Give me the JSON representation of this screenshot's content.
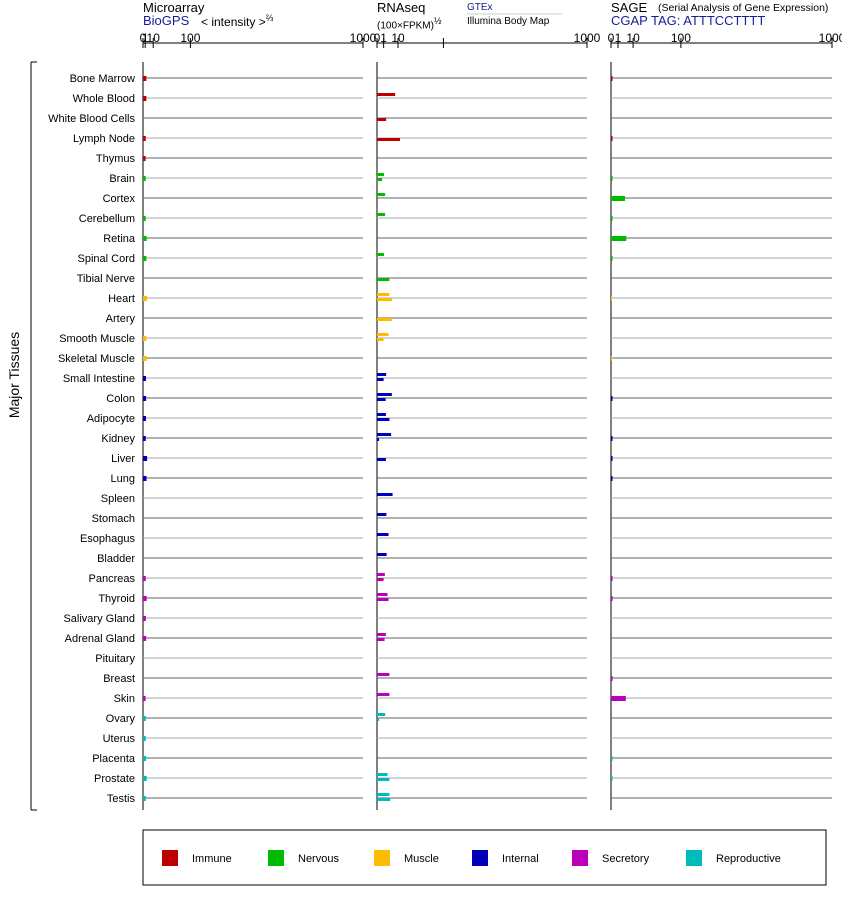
{
  "headers": {
    "microarray": "Microarray",
    "biogps": "BioGPS",
    "intensity": "< intensity >",
    "intensity_exp": "⅔",
    "rnaseq": "RNAseq",
    "fpkm": "(100×FPKM)",
    "fpkm_exp": "½",
    "gtex": "GTEx",
    "illumina": "Illumina Body Map",
    "sage": "SAGE",
    "sage_full": "(Serial Analysis of Gene Expression)",
    "cgap": "CGAP TAG: ATTTCCTTTT"
  },
  "y_group_label": "Major Tissues",
  "colors": {
    "Immune": "#bb0000",
    "Nervous": "#00bb00",
    "Muscle": "#ffbb00",
    "Internal": "#0000bb",
    "Secretory": "#bb00bb",
    "Reproductive": "#00bbbb"
  },
  "legend": [
    "Immune",
    "Nervous",
    "Muscle",
    "Internal",
    "Secretory",
    "Reproductive"
  ],
  "chart_data": [
    {
      "type": "bar",
      "title": "Microarray",
      "scale": "cube-root-like (intensity^2/3)",
      "tick_labels": [
        "0",
        "1",
        "10",
        "100",
        "1000"
      ],
      "xlim": [
        0,
        1000
      ],
      "series": [
        {
          "values": [
            1.9,
            1.9,
            null,
            1.4,
            1.3,
            1.4,
            null,
            1.4,
            2.1,
            1.9,
            null,
            2.5,
            null,
            1.9,
            2.2,
            1.6,
            1.7,
            1.6,
            1.4,
            2.5,
            2.0,
            null,
            null,
            null,
            null,
            1.4,
            2.1,
            1.5,
            1.7,
            null,
            null,
            1.3,
            1.4,
            1.4,
            1.7,
            2.2,
            1.4
          ]
        }
      ]
    },
    {
      "type": "bar",
      "title": "RNAseq",
      "scale": "square-root (100×FPKM)^1/2",
      "tick_labels": [
        "0",
        "1",
        "10",
        "1000"
      ],
      "xlim": [
        0,
        1000
      ],
      "series": [
        {
          "name": "GTEx",
          "values": [
            null,
            7.5,
            null,
            null,
            null,
            1.1,
            1.5,
            1.5,
            null,
            1.1,
            null,
            3.5,
            null,
            3.0,
            null,
            1.9,
            5.0,
            1.8,
            4.5,
            null,
            null,
            5.5,
            2.0,
            3.0,
            2.1,
            1.4,
            2.5,
            null,
            1.8,
            null,
            3.5,
            3.5,
            1.5,
            null,
            null,
            2.5,
            3.5
          ]
        },
        {
          "name": "Illumina Body Map",
          "values": [
            null,
            null,
            1.9,
            12.0,
            null,
            0.6,
            null,
            null,
            null,
            null,
            3.5,
            5.0,
            5.0,
            1.0,
            null,
            1.0,
            1.7,
            3.5,
            0.1,
            1.8,
            null,
            null,
            null,
            null,
            null,
            1.0,
            3.0,
            null,
            1.3,
            null,
            null,
            null,
            0.1,
            null,
            null,
            3.5,
            4.0
          ]
        }
      ]
    },
    {
      "type": "bar",
      "title": "SAGE",
      "tick_labels": [
        "0",
        "1",
        "10",
        "100",
        "1000"
      ],
      "xlim": [
        0,
        1000
      ],
      "series": [
        {
          "values": [
            0.05,
            null,
            null,
            0.05,
            null,
            0.05,
            4.0,
            0.05,
            4.8,
            0.05,
            null,
            0.02,
            null,
            null,
            0.02,
            null,
            0.05,
            null,
            0.05,
            0.05,
            0.05,
            null,
            null,
            null,
            null,
            0.05,
            0.05,
            null,
            null,
            null,
            0.05,
            4.5,
            null,
            null,
            0.05,
            0.05,
            null
          ]
        }
      ]
    }
  ],
  "tissues": [
    {
      "name": "Bone Marrow",
      "system": "Immune"
    },
    {
      "name": "Whole Blood",
      "system": "Immune"
    },
    {
      "name": "White Blood Cells",
      "system": "Immune"
    },
    {
      "name": "Lymph Node",
      "system": "Immune"
    },
    {
      "name": "Thymus",
      "system": "Immune"
    },
    {
      "name": "Brain",
      "system": "Nervous"
    },
    {
      "name": "Cortex",
      "system": "Nervous"
    },
    {
      "name": "Cerebellum",
      "system": "Nervous"
    },
    {
      "name": "Retina",
      "system": "Nervous"
    },
    {
      "name": "Spinal Cord",
      "system": "Nervous"
    },
    {
      "name": "Tibial Nerve",
      "system": "Nervous"
    },
    {
      "name": "Heart",
      "system": "Muscle"
    },
    {
      "name": "Artery",
      "system": "Muscle"
    },
    {
      "name": "Smooth Muscle",
      "system": "Muscle"
    },
    {
      "name": "Skeletal Muscle",
      "system": "Muscle"
    },
    {
      "name": "Small Intestine",
      "system": "Internal"
    },
    {
      "name": "Colon",
      "system": "Internal"
    },
    {
      "name": "Adipocyte",
      "system": "Internal"
    },
    {
      "name": "Kidney",
      "system": "Internal"
    },
    {
      "name": "Liver",
      "system": "Internal"
    },
    {
      "name": "Lung",
      "system": "Internal"
    },
    {
      "name": "Spleen",
      "system": "Internal"
    },
    {
      "name": "Stomach",
      "system": "Internal"
    },
    {
      "name": "Esophagus",
      "system": "Internal"
    },
    {
      "name": "Bladder",
      "system": "Internal"
    },
    {
      "name": "Pancreas",
      "system": "Secretory"
    },
    {
      "name": "Thyroid",
      "system": "Secretory"
    },
    {
      "name": "Salivary Gland",
      "system": "Secretory"
    },
    {
      "name": "Adrenal Gland",
      "system": "Secretory"
    },
    {
      "name": "Pituitary",
      "system": "Secretory"
    },
    {
      "name": "Breast",
      "system": "Secretory"
    },
    {
      "name": "Skin",
      "system": "Secretory"
    },
    {
      "name": "Ovary",
      "system": "Reproductive"
    },
    {
      "name": "Uterus",
      "system": "Reproductive"
    },
    {
      "name": "Placenta",
      "system": "Reproductive"
    },
    {
      "name": "Prostate",
      "system": "Reproductive"
    },
    {
      "name": "Testis",
      "system": "Reproductive"
    }
  ]
}
